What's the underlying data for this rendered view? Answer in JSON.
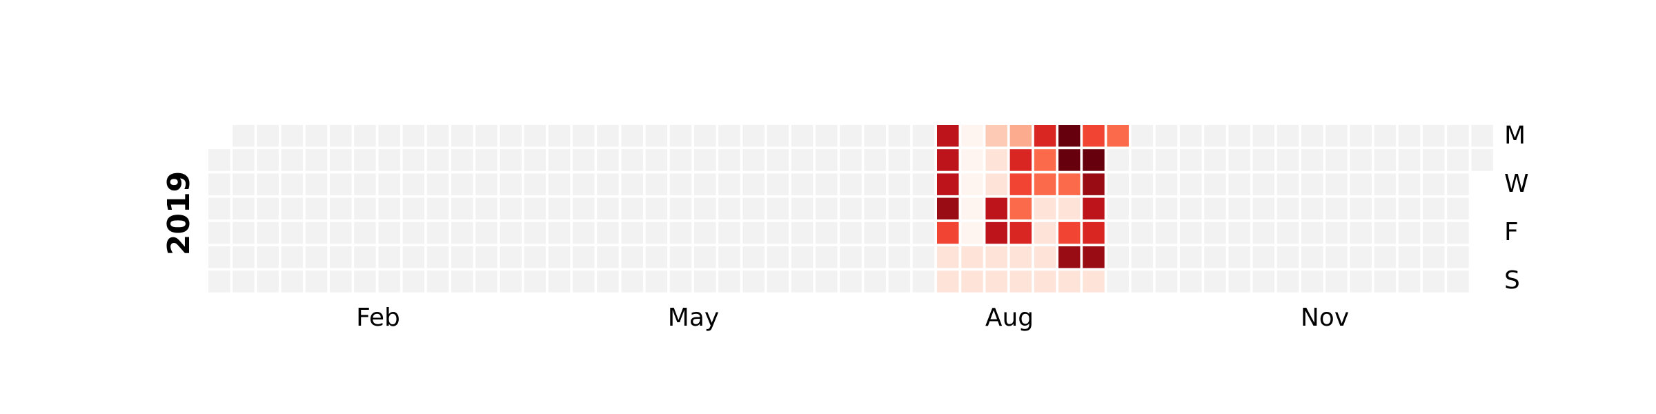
{
  "chart_data": {
    "type": "heatmap",
    "title": "",
    "year": "2019",
    "month_labels": [
      "Feb",
      "May",
      "Aug",
      "Nov"
    ],
    "day_labels": [
      "M",
      "W",
      "F",
      "S"
    ],
    "colormap": "Reds",
    "empty_color": "#f2f2f2",
    "value_range": [
      0,
      10
    ],
    "active_weeks_start": 30,
    "active_values": [
      [
        8,
        8,
        8,
        9,
        6,
        1,
        1
      ],
      [
        0,
        0,
        0,
        0,
        0,
        1,
        1
      ],
      [
        2,
        1,
        1,
        8,
        8,
        1,
        1
      ],
      [
        3,
        7,
        6,
        5,
        7,
        1,
        1
      ],
      [
        7,
        5,
        5,
        1,
        1,
        1,
        1
      ],
      [
        10,
        10,
        5,
        1,
        6,
        9,
        1
      ],
      [
        6,
        10,
        9,
        8,
        7,
        9,
        1
      ],
      [
        5,
        null,
        null,
        null,
        null,
        null,
        null
      ]
    ]
  }
}
